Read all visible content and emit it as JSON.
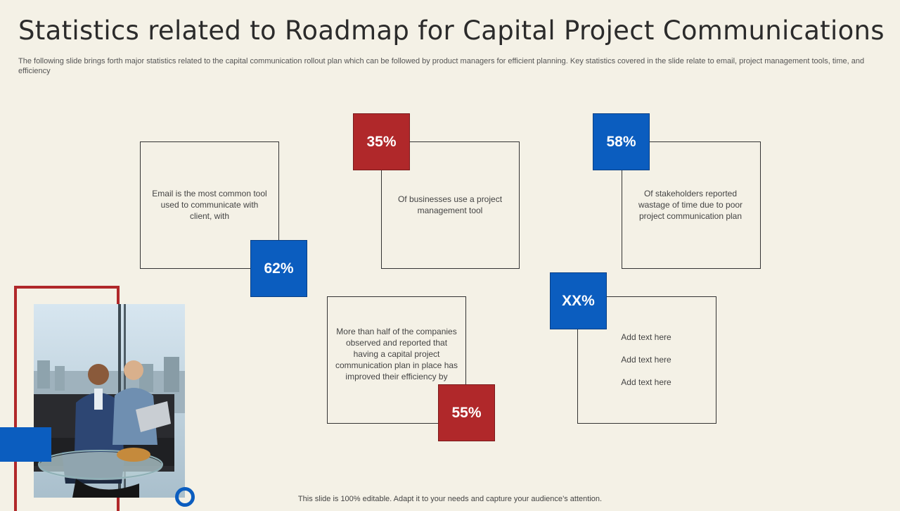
{
  "header": {
    "title": "Statistics related to Roadmap for Capital Project Communications",
    "subtitle": "The following slide brings forth major statistics related to the capital communication rollout plan which can be followed by product managers for efficient planning. Key statistics covered in the slide relate to email, project management tools, time, and efficiency"
  },
  "stats": {
    "email": {
      "value": "62%",
      "text": "Email is the most common tool used to communicate with client, with"
    },
    "pm_tool": {
      "value": "35%",
      "text": "Of businesses use a project management tool"
    },
    "stakeholders": {
      "value": "58%",
      "text": "Of stakeholders reported wastage of time due to poor project communication plan"
    },
    "efficiency": {
      "value": "55%",
      "text": "More than half of the companies observed and reported that having a capital project communication plan in place has improved their efficiency by"
    },
    "placeholder": {
      "value": "XX%",
      "lines": [
        "Add text here",
        "Add text here",
        "Add text here"
      ]
    }
  },
  "footer": "This slide is 100% editable. Adapt it to your needs and capture your audience’s attention.",
  "colors": {
    "background": "#f4f1e6",
    "red": "#b0282a",
    "blue": "#0b5dbf"
  }
}
